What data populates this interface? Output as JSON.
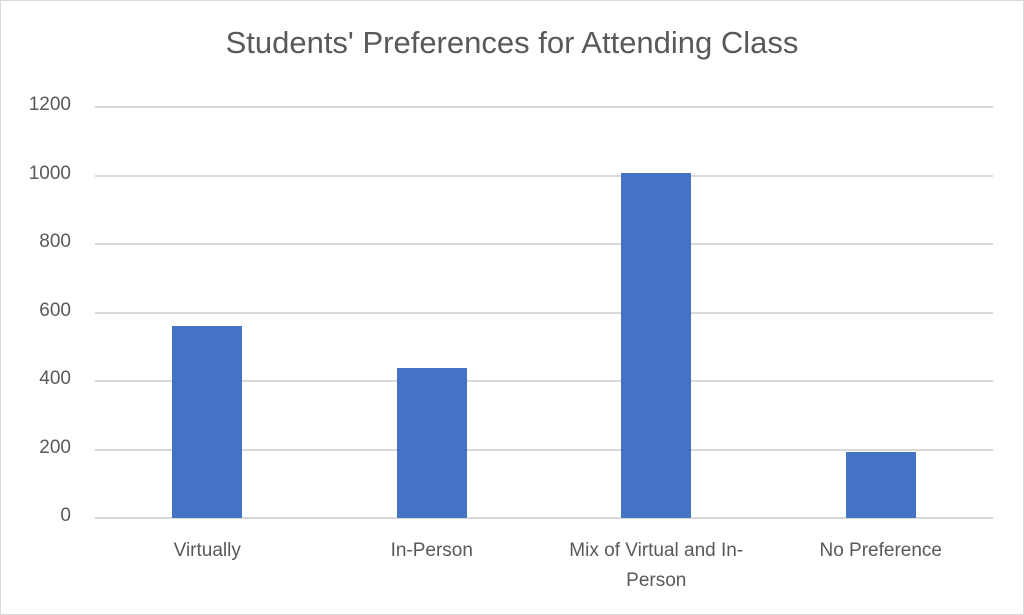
{
  "chart_data": {
    "type": "bar",
    "title": "Students' Preferences for Attending Class",
    "categories": [
      "Virtually",
      "In-Person",
      "Mix of Virtual and In-Person",
      "No Preference"
    ],
    "values": [
      562,
      438,
      1006,
      194
    ],
    "xlabel": "",
    "ylabel": "",
    "ylim": [
      0,
      1200
    ],
    "yticks": [
      "0",
      "200",
      "400",
      "600",
      "800",
      "1000",
      "1200"
    ],
    "grid": true,
    "legend": "none",
    "bar_color": "#4472c4"
  },
  "x_label_lines": [
    [
      "Virtually"
    ],
    [
      "In-Person"
    ],
    [
      "Mix of Virtual and In-",
      "Person"
    ],
    [
      "No Preference"
    ]
  ]
}
